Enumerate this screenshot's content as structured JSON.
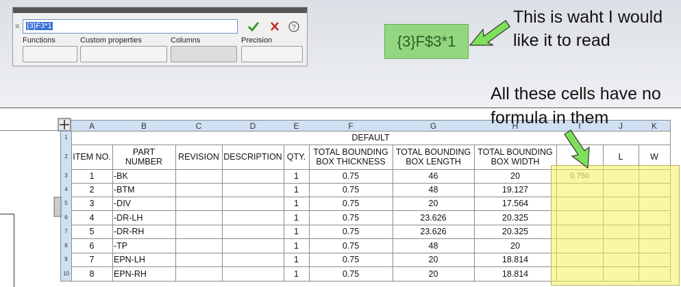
{
  "formula_bar": {
    "prefix": "=",
    "input": "{3}F3*1",
    "labels": [
      "Functions",
      "Custom properties",
      "Columns",
      "Precision"
    ]
  },
  "callout": {
    "desired": "{3}F$3*1",
    "note": "This is waht I would like it to read"
  },
  "annotation": "All these cells have no formula in them",
  "table": {
    "column_letters": [
      "A",
      "B",
      "C",
      "D",
      "E",
      "F",
      "G",
      "H",
      "I",
      "J",
      "K"
    ],
    "row_numbers": [
      "1",
      "2",
      "3",
      "4",
      "5",
      "6",
      "7",
      "8",
      "9",
      "10"
    ],
    "title": "DEFAULT",
    "header": [
      "ITEM NO.",
      "PART NUMBER",
      "REVISION",
      "DESCRIPTION",
      "QTY.",
      "TOTAL BOUNDING BOX THICKNESS",
      "TOTAL BOUNDING BOX LENGTH",
      "TOTAL BOUNDING BOX WIDTH"
    ],
    "extra_header": [
      "L",
      "W"
    ],
    "rows": [
      {
        "item": 1,
        "part": "-BK",
        "qty": 1,
        "thickness": 0.75,
        "length": 46,
        "width": 20,
        "i": "0.750"
      },
      {
        "item": 2,
        "part": "-BTM",
        "qty": 1,
        "thickness": 0.75,
        "length": 48,
        "width": 19.127
      },
      {
        "item": 3,
        "part": "-DIV",
        "qty": 1,
        "thickness": 0.75,
        "length": 20,
        "width": 17.564
      },
      {
        "item": 4,
        "part": "-DR-LH",
        "qty": 1,
        "thickness": 0.75,
        "length": 23.626,
        "width": 20.325
      },
      {
        "item": 5,
        "part": "-DR-RH",
        "qty": 1,
        "thickness": 0.75,
        "length": 23.626,
        "width": 20.325
      },
      {
        "item": 6,
        "part": "-TP",
        "qty": 1,
        "thickness": 0.75,
        "length": 48,
        "width": 20
      },
      {
        "item": 7,
        "part": "EPN-LH",
        "qty": 1,
        "thickness": 0.75,
        "length": 20,
        "width": 18.814
      },
      {
        "item": 8,
        "part": "EPN-RH",
        "qty": 1,
        "thickness": 0.75,
        "length": 20,
        "width": 18.814
      }
    ]
  }
}
